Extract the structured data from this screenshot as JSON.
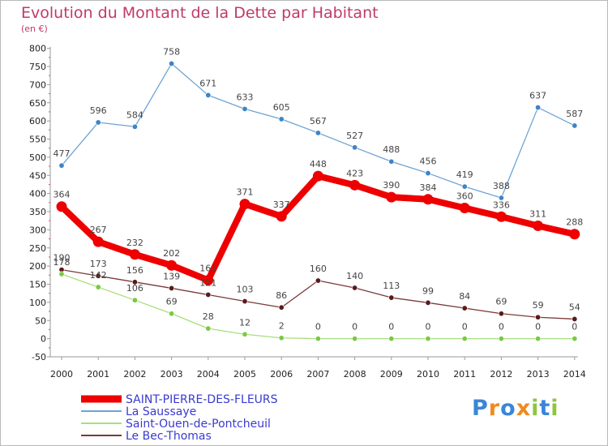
{
  "chart_data": {
    "type": "line",
    "title": "Evolution du Montant de la Dette par Habitant",
    "subtitle": "(en €)",
    "x": [
      "2000",
      "2001",
      "2002",
      "2003",
      "2004",
      "2005",
      "2006",
      "2007",
      "2008",
      "2009",
      "2010",
      "2011",
      "2012",
      "2013",
      "2014"
    ],
    "ylim": [
      -50,
      800
    ],
    "yticks": [
      -50,
      0,
      50,
      100,
      150,
      200,
      250,
      300,
      350,
      400,
      450,
      500,
      550,
      600,
      650,
      700,
      750,
      800
    ],
    "grid": false,
    "legend": "bottom-left",
    "series": [
      {
        "name": "SAINT-PIERRE-DES-FLEURS",
        "color": "#ee0000",
        "emphasis": true,
        "values": [
          364,
          267,
          232,
          202,
          161,
          371,
          337,
          448,
          423,
          390,
          384,
          360,
          336,
          311,
          288
        ]
      },
      {
        "name": "La Saussaye",
        "color": "#6fa3d4",
        "marker": "#3d84c5",
        "values": [
          477,
          596,
          584,
          758,
          671,
          633,
          605,
          567,
          527,
          488,
          456,
          419,
          388,
          637,
          587
        ]
      },
      {
        "name": "Saint-Ouen-de-Pontcheuil",
        "color": "#a9de7e",
        "marker": "#7ac943",
        "values": [
          178,
          142,
          106,
          69,
          28,
          12,
          2,
          0,
          0,
          0,
          0,
          0,
          0,
          0,
          0
        ]
      },
      {
        "name": "Le Bec-Thomas",
        "color": "#7a3a3a",
        "marker": "#5a1a1a",
        "values": [
          190,
          173,
          156,
          139,
          121,
          103,
          86,
          160,
          140,
          113,
          99,
          84,
          69,
          59,
          54
        ]
      }
    ]
  },
  "logo": {
    "letters": [
      "P",
      "r",
      "o",
      "x",
      "i",
      "t",
      "i"
    ],
    "colors": [
      "#3a86d8",
      "#f08a1e",
      "#3a86d8",
      "#f08a1e",
      "#8dc63f",
      "#3a86d8",
      "#8dc63f"
    ]
  }
}
